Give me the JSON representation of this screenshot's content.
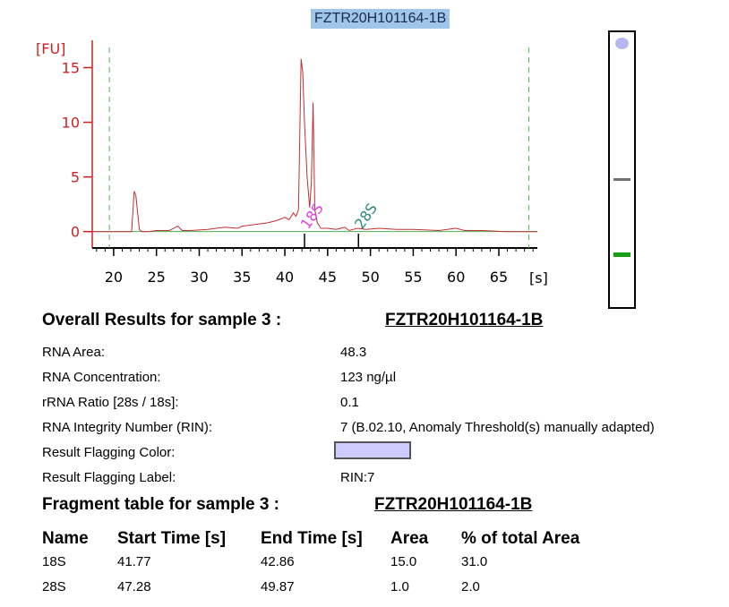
{
  "sample_name": "FZTR20H101164-1B",
  "chart_data": {
    "type": "line",
    "ylabel": "[FU]",
    "xlabel": "[s]",
    "xlim": [
      17.5,
      69.5
    ],
    "ylim": [
      -1.5,
      17.5
    ],
    "xticks": [
      20,
      25,
      30,
      35,
      40,
      45,
      50,
      55,
      60,
      65
    ],
    "yticks": [
      0,
      5,
      10,
      15
    ],
    "series": [
      {
        "x": [
          17.5,
          22.1,
          22.4,
          22.6,
          23.0,
          23.3,
          24.0,
          25.0,
          26.5,
          27.5,
          28.0,
          29.0,
          31.0,
          33.0,
          34.5,
          35.0,
          36.0,
          37.0,
          38.0,
          39.0,
          40.0,
          40.5,
          41.0,
          41.3,
          41.6,
          41.9,
          42.1,
          42.3,
          42.6,
          42.9,
          43.1,
          43.3,
          43.5,
          43.8,
          44.2,
          45.0,
          46.0,
          47.0,
          47.5,
          48.0,
          48.5,
          49.5,
          51.0,
          53.0,
          55.0,
          58.0,
          60.0,
          61.0,
          63.0,
          66.0,
          69.5
        ],
        "y": [
          0,
          0,
          3.7,
          3.3,
          0.2,
          0,
          0,
          0.1,
          0.1,
          0.5,
          0.1,
          0.1,
          0.2,
          0.4,
          0.3,
          0.5,
          0.6,
          0.7,
          0.8,
          1.0,
          1.3,
          1.1,
          1.7,
          1.4,
          2.0,
          15.8,
          14.5,
          10.0,
          5.0,
          2.2,
          4.5,
          11.8,
          2.0,
          0.8,
          0.3,
          0.3,
          0.2,
          0.4,
          0.1,
          0.2,
          0.3,
          0.2,
          0.3,
          0.2,
          0.2,
          0.1,
          0.3,
          0.1,
          0.1,
          0,
          0
        ]
      }
    ],
    "markers": [
      {
        "label": "18S",
        "x": 42.3,
        "color": "#e040e0"
      },
      {
        "label": "28S",
        "x": 48.6,
        "color": "#2a8a7a"
      }
    ],
    "dashed_vlines": [
      19.5,
      68.5
    ],
    "lane_bands": [
      {
        "position": 0.04,
        "color": "#b8b8f0"
      },
      {
        "position": 0.53,
        "color": "#707070"
      },
      {
        "position": 0.8,
        "color": "#13a013"
      }
    ]
  },
  "overall": {
    "heading": "Overall Results for sample 3  :",
    "sample_name": "FZTR20H101164-1B",
    "rows": [
      {
        "label": "RNA Area:",
        "value": "48.3"
      },
      {
        "label": "RNA Concentration:",
        "value": "123 ng/µl"
      },
      {
        "label": "rRNA Ratio [28s / 18s]:",
        "value": "0.1"
      },
      {
        "label": "RNA Integrity Number (RIN):",
        "value": "7   (B.02.10, Anomaly Threshold(s) manually adapted)"
      },
      {
        "label": "Result Flagging Color:",
        "value": ""
      },
      {
        "label": "Result Flagging Label:",
        "value": "RIN:7"
      }
    ],
    "flag_color": "#ccccff"
  },
  "fragment": {
    "heading": "Fragment table for sample 3  :",
    "sample_name": "FZTR20H101164-1B",
    "columns": [
      "Name",
      "Start Time [s]",
      "End Time [s]",
      "Area",
      "% of total Area"
    ],
    "rows": [
      [
        "18S",
        "41.77",
        "42.86",
        "15.0",
        "31.0"
      ],
      [
        "28S",
        "47.28",
        "49.87",
        "1.0",
        "2.0"
      ]
    ]
  }
}
